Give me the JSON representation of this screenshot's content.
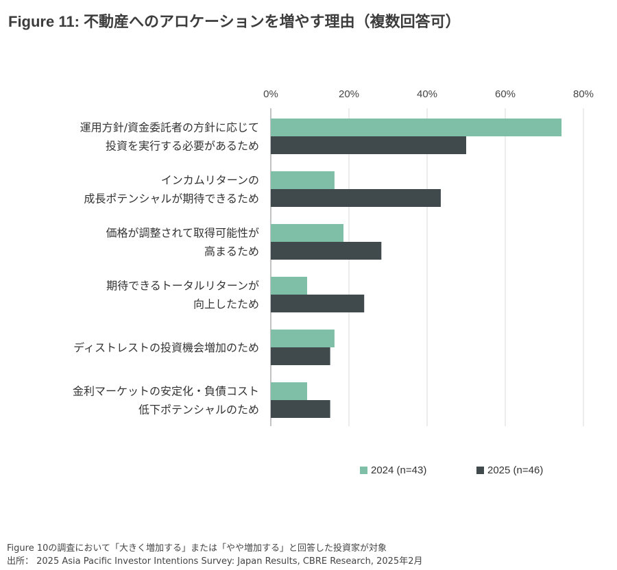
{
  "title": {
    "prefix": "Figure 11: ",
    "text": "不動産へのアロケーションを増やす理由（複数回答可）"
  },
  "chart_data": {
    "type": "bar",
    "orientation": "horizontal",
    "xlim": [
      0,
      80
    ],
    "xticks": [
      "0%",
      "20%",
      "40%",
      "60%",
      "80%"
    ],
    "grid": true,
    "legend_position": "bottom",
    "categories": [
      [
        "運用方針/資金委託者の方針に応じて",
        "投資を実行する必要があるため"
      ],
      [
        "インカムリターンの",
        "成長ポテンシャルが期待できるため"
      ],
      [
        "価格が調整されて取得可能性が",
        "高まるため"
      ],
      [
        "期待できるトータルリターンが",
        "向上したため"
      ],
      [
        "ディストレストの投資機会増加のため"
      ],
      [
        "金利マーケットの安定化・負債コスト",
        "低下ポテンシャルのため"
      ]
    ],
    "series": [
      {
        "name": "2024 (n=43)",
        "color": "#7fbfa8",
        "values": [
          74.4,
          16.3,
          18.6,
          9.3,
          16.3,
          9.3
        ]
      },
      {
        "name": "2025 (n=46)",
        "color": "#404a4c",
        "values": [
          50.0,
          43.5,
          28.3,
          23.9,
          15.2,
          15.2
        ]
      }
    ]
  },
  "footnote": "Figure 10の調査において「大きく増加する」または「やや増加する」と回答した投資家が対象",
  "source": "出所： 2025 Asia Pacific Investor Intentions Survey: Japan Results, CBRE Research, 2025年2月"
}
